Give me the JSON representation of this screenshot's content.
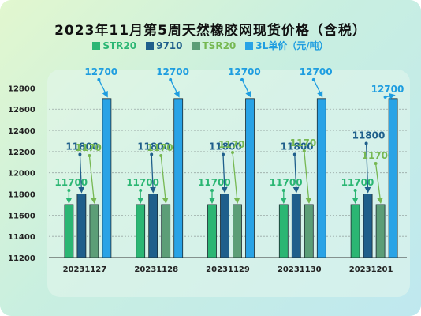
{
  "chart_data": {
    "type": "bar",
    "title": "2023年11月第5周天然橡胶网现货价格（含税）",
    "categories": [
      "20231127",
      "20231128",
      "20231129",
      "20231130",
      "20231201"
    ],
    "series": [
      {
        "name": "STR20",
        "color": "#2bb673",
        "label_color": "#2bb673",
        "values": [
          11700,
          11700,
          11700,
          11700,
          11700
        ]
      },
      {
        "name": "9710",
        "color": "#1f5f8b",
        "label_color": "#1f5f8b",
        "values": [
          11800,
          11800,
          11800,
          11800,
          11800
        ]
      },
      {
        "name": "TSR20",
        "color": "#5c9e77",
        "label_color": "#76b852",
        "values": [
          11700,
          11700,
          11700,
          11700,
          11700
        ]
      },
      {
        "name": "3L单价（元/吨）",
        "color": "#29a3e6",
        "label_color": "#1e9de0",
        "values": [
          12700,
          12700,
          12700,
          12700,
          12700
        ]
      }
    ],
    "y_ticks": [
      "11200",
      "11400",
      "11600",
      "11800",
      "12000",
      "12200",
      "12400",
      "12600",
      "12800"
    ],
    "ylim": [
      11200,
      12900
    ],
    "grid": true,
    "legend": "top"
  }
}
